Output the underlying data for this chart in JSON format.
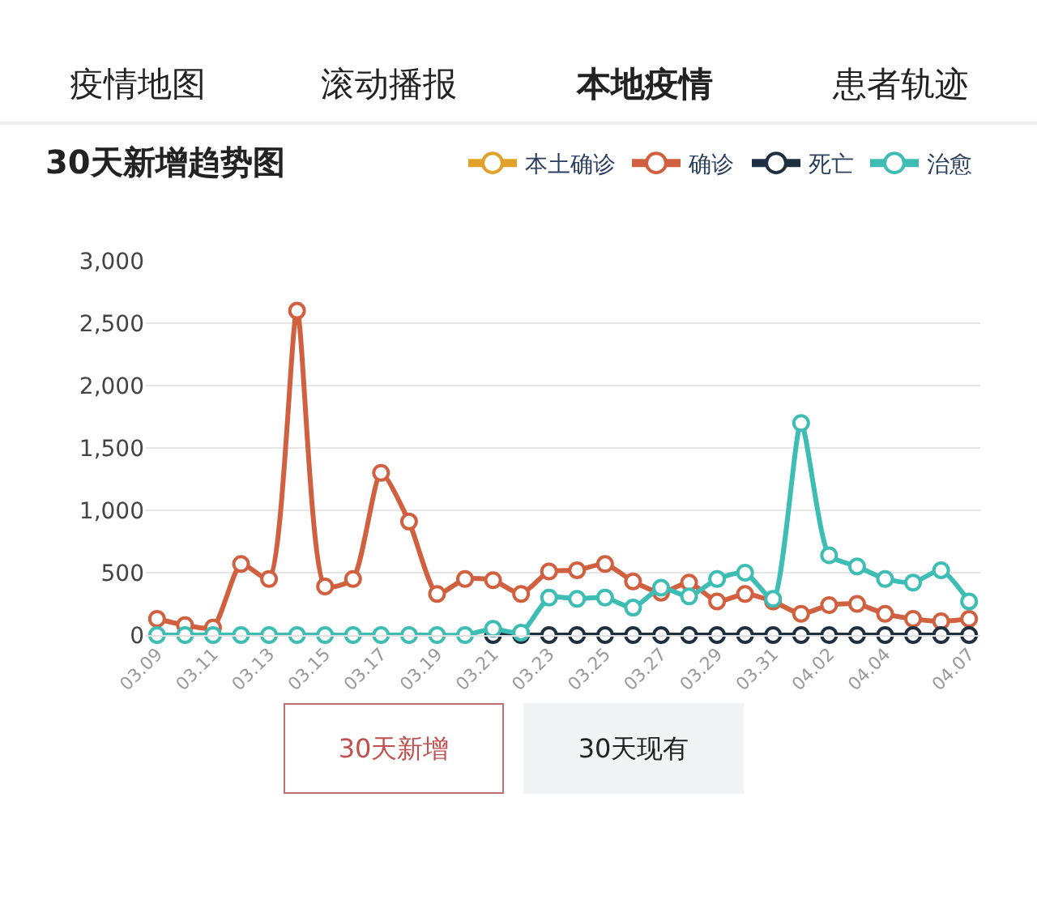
{
  "chart_data": {
    "type": "line",
    "title": "30天新增趋势图",
    "annotations": [
      "疫情地图",
      "滚动播报",
      "本地疫情",
      "患者轨迹",
      "30天新增",
      "30天现有"
    ],
    "categories": [
      "03.09",
      null,
      "03.11",
      null,
      "03.13",
      null,
      "03.15",
      null,
      "03.17",
      null,
      "03.19",
      null,
      "03.21",
      null,
      "03.23",
      null,
      "03.25",
      null,
      "03.27",
      null,
      "03.29",
      null,
      "03.31",
      null,
      "04.02",
      null,
      "04.04",
      null,
      null,
      "04.07"
    ],
    "series": [
      {
        "name": "本土确诊",
        "color": "#e0a228",
        "values": [
          null,
          null,
          null,
          null,
          null,
          null,
          null,
          null,
          null,
          null,
          null,
          null,
          null,
          null,
          null,
          null,
          null,
          null,
          null,
          null,
          null,
          null,
          null,
          null,
          null,
          null,
          null,
          null,
          null,
          null
        ]
      },
      {
        "name": "确诊",
        "color": "#d0603f",
        "values": [
          130,
          80,
          60,
          570,
          450,
          2600,
          390,
          450,
          1300,
          910,
          330,
          450,
          440,
          330,
          510,
          520,
          570,
          430,
          340,
          420,
          270,
          330,
          270,
          170,
          240,
          250,
          170,
          130,
          110,
          130
        ]
      },
      {
        "name": "死亡",
        "color": "#1e3040",
        "values": [
          null,
          null,
          null,
          null,
          null,
          null,
          null,
          null,
          null,
          null,
          null,
          null,
          0,
          0,
          0,
          0,
          0,
          0,
          0,
          0,
          0,
          0,
          0,
          0,
          0,
          0,
          0,
          0,
          0,
          0
        ]
      },
      {
        "name": "治愈",
        "color": "#3dbdb4",
        "values": [
          0,
          0,
          0,
          0,
          0,
          0,
          0,
          0,
          0,
          0,
          0,
          0,
          50,
          20,
          300,
          290,
          300,
          220,
          380,
          310,
          450,
          500,
          290,
          1700,
          640,
          550,
          450,
          420,
          520,
          270
        ]
      }
    ],
    "ylim": [
      0,
      3000
    ],
    "yticks": [
      0,
      500,
      {
        "value": 1000,
        "label": "1,000"
      },
      {
        "value": 1500,
        "label": "1,500"
      },
      {
        "value": 2000,
        "label": "2,000"
      },
      {
        "value": 2500,
        "label": "2,500"
      },
      {
        "value": 3000,
        "label": "3,000"
      }
    ],
    "grid": "y",
    "legend": "top right",
    "marker": "circle",
    "line_style": "solid"
  }
}
